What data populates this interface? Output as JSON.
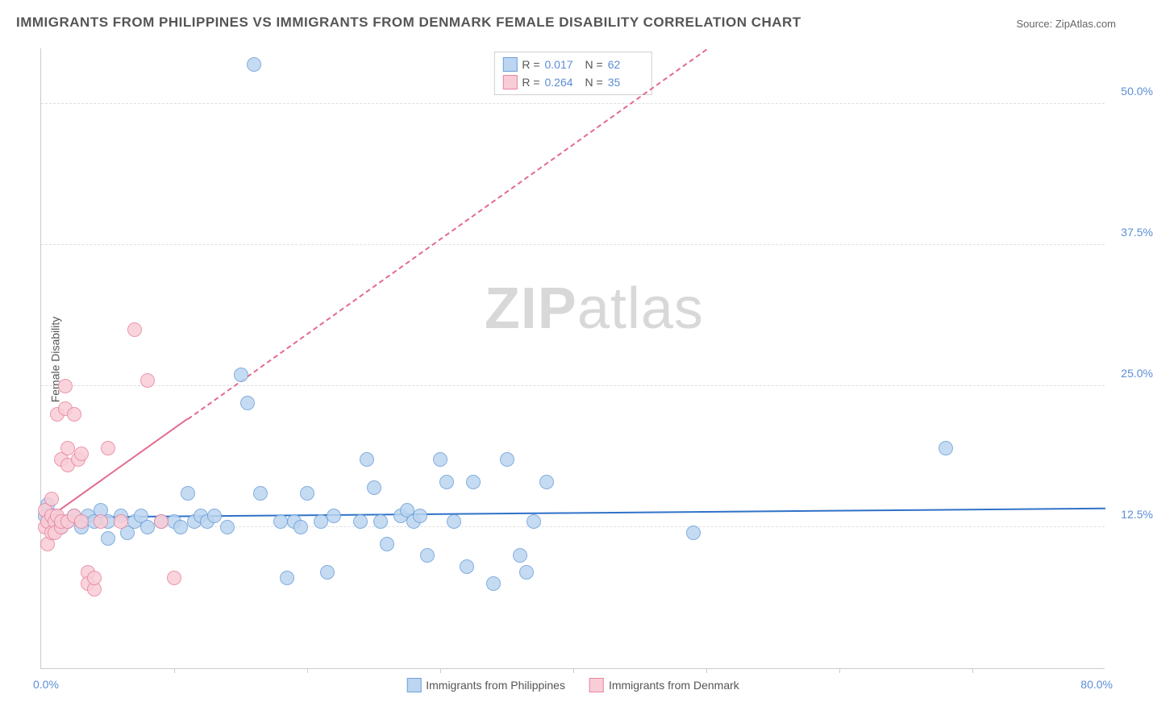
{
  "title": "IMMIGRANTS FROM PHILIPPINES VS IMMIGRANTS FROM DENMARK FEMALE DISABILITY CORRELATION CHART",
  "source": "Source: ZipAtlas.com",
  "watermark_zip": "ZIP",
  "watermark_atlas": "atlas",
  "y_axis_label": "Female Disability",
  "chart": {
    "type": "scatter",
    "background_color": "#ffffff",
    "grid_color": "#e0e0e0",
    "axis_color": "#cccccc",
    "tick_label_color": "#5b8dd6",
    "tick_fontsize": 14,
    "title_fontsize": 17,
    "title_color": "#555555",
    "xlim": [
      0,
      80
    ],
    "ylim": [
      0,
      55
    ],
    "x_origin_label": "0.0%",
    "x_max_label": "80.0%",
    "x_tick_positions": [
      10,
      20,
      30,
      40,
      50,
      60,
      70
    ],
    "y_ticks": [
      {
        "value": 12.5,
        "label": "12.5%"
      },
      {
        "value": 25.0,
        "label": "25.0%"
      },
      {
        "value": 37.5,
        "label": "37.5%"
      },
      {
        "value": 50.0,
        "label": "50.0%"
      }
    ],
    "series": [
      {
        "name": "Immigrants from Philippines",
        "marker_fill": "#bcd5f0",
        "marker_stroke": "#6fa1d9",
        "marker_opacity": 0.85,
        "marker_radius": 9,
        "R": "0.017",
        "N": "62",
        "trend": {
          "x1": 0,
          "y1": 13.5,
          "x2": 80,
          "y2": 14.3,
          "color": "#2f72c8",
          "width": 2,
          "dash": "solid"
        },
        "points": [
          [
            0.5,
            13.0
          ],
          [
            0.5,
            14.5
          ],
          [
            1.0,
            13.5
          ],
          [
            1.5,
            12.5
          ],
          [
            2.0,
            13.0
          ],
          [
            2.5,
            13.5
          ],
          [
            3.0,
            12.5
          ],
          [
            3.5,
            13.5
          ],
          [
            4.0,
            13.0
          ],
          [
            4.5,
            14.0
          ],
          [
            5.0,
            13.0
          ],
          [
            5.0,
            11.5
          ],
          [
            6.0,
            13.5
          ],
          [
            6.5,
            12.0
          ],
          [
            7.0,
            13.0
          ],
          [
            7.5,
            13.5
          ],
          [
            8.0,
            12.5
          ],
          [
            9.0,
            13.0
          ],
          [
            10.0,
            13.0
          ],
          [
            10.5,
            12.5
          ],
          [
            11.0,
            15.5
          ],
          [
            11.5,
            13.0
          ],
          [
            12.0,
            13.5
          ],
          [
            12.5,
            13.0
          ],
          [
            13.0,
            13.5
          ],
          [
            14.0,
            12.5
          ],
          [
            15.0,
            26.0
          ],
          [
            15.5,
            23.5
          ],
          [
            16.0,
            53.5
          ],
          [
            16.5,
            15.5
          ],
          [
            18.0,
            13.0
          ],
          [
            18.5,
            8.0
          ],
          [
            19.0,
            13.0
          ],
          [
            19.5,
            12.5
          ],
          [
            20.0,
            15.5
          ],
          [
            21.0,
            13.0
          ],
          [
            21.5,
            8.5
          ],
          [
            22.0,
            13.5
          ],
          [
            24.0,
            13.0
          ],
          [
            24.5,
            18.5
          ],
          [
            25.0,
            16.0
          ],
          [
            25.5,
            13.0
          ],
          [
            26.0,
            11.0
          ],
          [
            27.0,
            13.5
          ],
          [
            27.5,
            14.0
          ],
          [
            28.0,
            13.0
          ],
          [
            28.5,
            13.5
          ],
          [
            29.0,
            10.0
          ],
          [
            30.0,
            18.5
          ],
          [
            30.5,
            16.5
          ],
          [
            31.0,
            13.0
          ],
          [
            32.0,
            9.0
          ],
          [
            32.5,
            16.5
          ],
          [
            34.0,
            7.5
          ],
          [
            35.0,
            18.5
          ],
          [
            36.0,
            10.0
          ],
          [
            36.5,
            8.5
          ],
          [
            37.0,
            13.0
          ],
          [
            38.0,
            16.5
          ],
          [
            49.0,
            12.0
          ],
          [
            68.0,
            19.5
          ],
          [
            0.3,
            13.5
          ]
        ]
      },
      {
        "name": "Immigrants from Denmark",
        "marker_fill": "#f8cdd7",
        "marker_stroke": "#e886a0",
        "marker_opacity": 0.85,
        "marker_radius": 9,
        "R": "0.264",
        "N": "35",
        "trend": {
          "x1": 0,
          "y1": 13.0,
          "x2": 50,
          "y2": 55.0,
          "color": "#e26b8d",
          "width": 2,
          "dash": "dashed",
          "solid_until_x": 11
        },
        "points": [
          [
            0.3,
            12.5
          ],
          [
            0.3,
            14.0
          ],
          [
            0.5,
            13.0
          ],
          [
            0.5,
            11.0
          ],
          [
            0.8,
            12.0
          ],
          [
            0.8,
            13.5
          ],
          [
            0.8,
            15.0
          ],
          [
            1.0,
            13.0
          ],
          [
            1.0,
            12.0
          ],
          [
            1.2,
            13.5
          ],
          [
            1.2,
            22.5
          ],
          [
            1.5,
            12.5
          ],
          [
            1.5,
            13.0
          ],
          [
            1.5,
            18.5
          ],
          [
            1.8,
            25.0
          ],
          [
            1.8,
            23.0
          ],
          [
            2.0,
            18.0
          ],
          [
            2.0,
            19.5
          ],
          [
            2.0,
            13.0
          ],
          [
            2.5,
            13.5
          ],
          [
            2.5,
            22.5
          ],
          [
            2.8,
            18.5
          ],
          [
            3.0,
            19.0
          ],
          [
            3.0,
            13.0
          ],
          [
            3.5,
            8.5
          ],
          [
            3.5,
            7.5
          ],
          [
            4.0,
            7.0
          ],
          [
            4.0,
            8.0
          ],
          [
            4.5,
            13.0
          ],
          [
            5.0,
            19.5
          ],
          [
            6.0,
            13.0
          ],
          [
            7.0,
            30.0
          ],
          [
            8.0,
            25.5
          ],
          [
            9.0,
            13.0
          ],
          [
            10.0,
            8.0
          ]
        ]
      }
    ],
    "legend_top": {
      "R_label": "R =",
      "N_label": "N ="
    },
    "legend_bottom_labels": [
      "Immigrants from Philippines",
      "Immigrants from Denmark"
    ]
  }
}
